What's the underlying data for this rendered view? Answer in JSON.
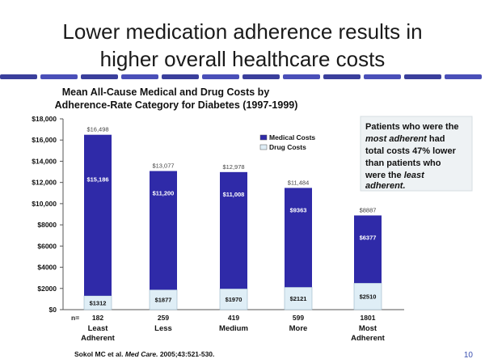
{
  "slide": {
    "title_line1": "Lower medication adherence results in",
    "title_line2": "higher overall healthcare costs",
    "page_number": "10",
    "citation_prefix": "Sokol MC et al. ",
    "citation_journal": "Med Care.",
    "citation_suffix": " 2005;43:521-530."
  },
  "callout": {
    "line1": "Patients who were the",
    "line2_em": "most adherent",
    "line2_rest": " had",
    "line3": "total costs 47% lower",
    "line4": "than patients who",
    "line5_pre": "were the ",
    "line5_em": "least",
    "line6_em": "adherent."
  },
  "chart_data": {
    "type": "bar",
    "stacked": true,
    "title_line1": "Mean All-Cause Medical and Drug Costs by",
    "title_line2": "Adherence-Rate Category for Diabetes (1997-1999)",
    "n_label": "n=",
    "categories": [
      "Least",
      "Less",
      "Medium",
      "More",
      "Most"
    ],
    "category_sublabels": [
      "Adherent",
      "",
      "",
      "",
      "Adherent"
    ],
    "n_values": [
      "182",
      "259",
      "419",
      "599",
      "1801"
    ],
    "series": [
      {
        "name": "Drug Costs",
        "values": [
          1312,
          1877,
          1970,
          2121,
          2510
        ],
        "labels": [
          "$1312",
          "$1877",
          "$1970",
          "$2121",
          "$2510"
        ],
        "color": "#dfeef6"
      },
      {
        "name": "Medical Costs",
        "values": [
          15186,
          11200,
          11008,
          9363,
          6377
        ],
        "labels": [
          "$15,186",
          "$11,200",
          "$11,008",
          "$9363",
          "$6377"
        ],
        "color": "#2f2aa8"
      }
    ],
    "totals": [
      16498,
      13077,
      12978,
      11484,
      8887
    ],
    "total_labels": [
      "$16,498",
      "$13,077",
      "$12,978",
      "$11,484",
      "$8887"
    ],
    "ylim": [
      0,
      18000
    ],
    "y_ticks": [
      0,
      2000,
      4000,
      6000,
      8000,
      10000,
      12000,
      14000,
      16000,
      18000
    ],
    "y_tick_labels": [
      "$0",
      "$2000",
      "$4000",
      "$6000",
      "$8000",
      "$10,000",
      "$12,000",
      "$14,000",
      "$16,000",
      "$18,000"
    ],
    "legend": [
      {
        "label": "Medical Costs",
        "color": "#2f2aa8"
      },
      {
        "label": "Drug Costs",
        "color": "#dfeef6"
      }
    ],
    "legend_position": "top-right"
  }
}
